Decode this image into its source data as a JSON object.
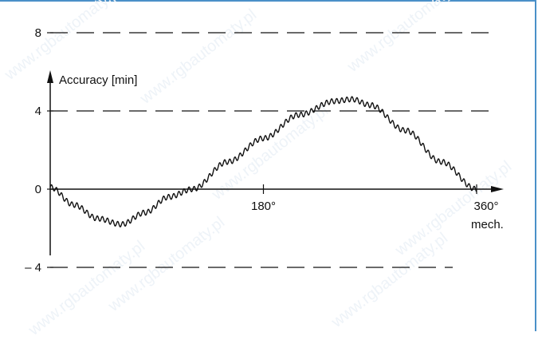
{
  "watermark": "www.rgbautomaty.pl",
  "chart_data": {
    "type": "line",
    "ylabel": "Accuracy [min]",
    "xlabel": "mech.",
    "x_ticks": [
      {
        "value": 180,
        "label": "180°"
      },
      {
        "value": 360,
        "label": "360°"
      }
    ],
    "y_ticks": [
      {
        "value": 8,
        "label": "8"
      },
      {
        "value": 4,
        "label": "4"
      },
      {
        "value": 0,
        "label": "0"
      },
      {
        "value": -4,
        "label": "– 4"
      }
    ],
    "xlim": [
      0,
      360
    ],
    "ylim": [
      -6.5,
      12
    ],
    "dashed_reference_lines": [
      8,
      4,
      -4
    ],
    "series": [
      {
        "description_points": [
          [
            0,
            0.1
          ],
          [
            20,
            -0.8
          ],
          [
            40,
            -1.5
          ],
          [
            60,
            -1.8
          ],
          [
            80,
            -1.2
          ],
          [
            100,
            -0.4
          ],
          [
            120,
            0.0
          ],
          [
            150,
            1.4
          ],
          [
            180,
            2.6
          ],
          [
            210,
            3.8
          ],
          [
            240,
            4.5
          ],
          [
            255,
            4.6
          ],
          [
            270,
            4.3
          ],
          [
            300,
            3.0
          ],
          [
            330,
            1.4
          ],
          [
            360,
            0.0
          ]
        ]
      }
    ],
    "grid": false,
    "color": "#111111"
  }
}
